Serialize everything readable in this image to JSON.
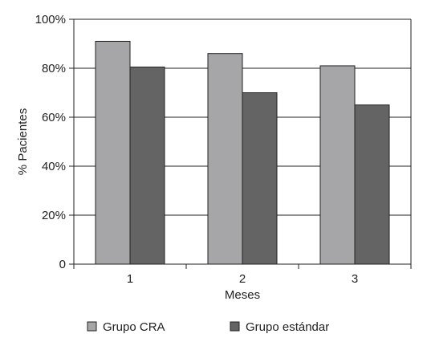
{
  "chart_data": {
    "type": "bar",
    "xlabel": "Meses",
    "ylabel": "% Pacientes",
    "categories": [
      "1",
      "2",
      "3"
    ],
    "ylim": [
      0,
      100
    ],
    "yticks": [
      "0",
      "20%",
      "40%",
      "60%",
      "80%",
      "100%"
    ],
    "grid": true,
    "legend_position": "bottom",
    "series": [
      {
        "name": "Grupo CRA",
        "values": [
          91,
          86,
          81
        ],
        "color": "#a6a6a8"
      },
      {
        "name": "Grupo estándar",
        "values": [
          80.5,
          70,
          65
        ],
        "color": "#646464"
      }
    ]
  }
}
